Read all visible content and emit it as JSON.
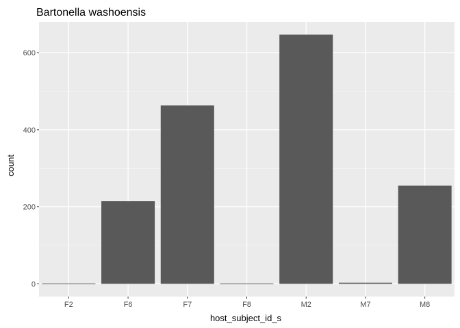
{
  "chart_data": {
    "type": "bar",
    "title": "Bartonella washoensis",
    "xlabel": "host_subject_id_s",
    "ylabel": "count",
    "categories": [
      "F2",
      "F6",
      "F7",
      "F8",
      "M2",
      "M7",
      "M8"
    ],
    "values": [
      1,
      215,
      463,
      1,
      647,
      3,
      255
    ],
    "ylim": [
      -33,
      680
    ],
    "yticks": [
      0,
      200,
      400,
      600
    ],
    "ytick_labels": [
      "0",
      "200",
      "400",
      "600"
    ],
    "grid": true,
    "legend": "none",
    "colors": {
      "bar": "#595959",
      "panel": "#ebebeb",
      "grid_major": "#ffffff",
      "grid_minor": "#f5f5f5",
      "tick": "#333333"
    }
  }
}
